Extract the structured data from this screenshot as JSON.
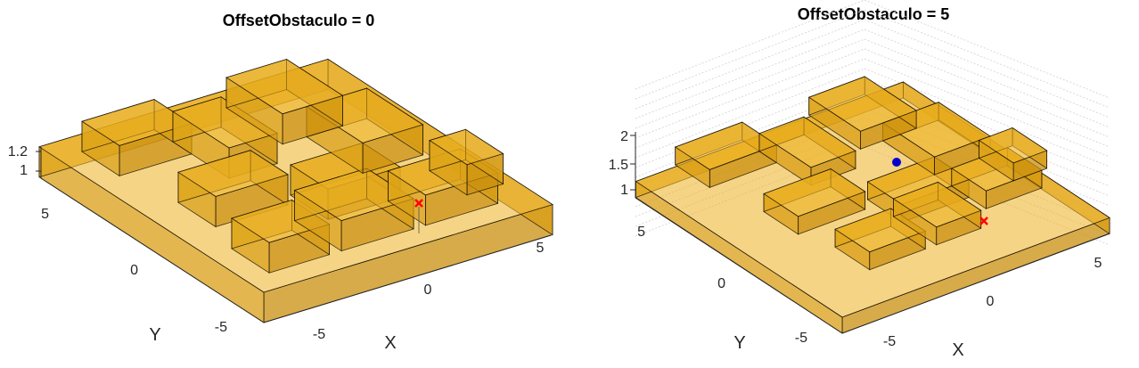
{
  "chart_data": [
    {
      "type": "3d-surface",
      "title": "OffsetObstaculo = 0",
      "xlabel": "X",
      "ylabel": "Y",
      "xticks": [
        "-5",
        "0",
        "5"
      ],
      "yticks": [
        "-5",
        "0",
        "5"
      ],
      "zticks": [
        "1",
        "1.2"
      ],
      "grid": false,
      "colors": {
        "obstacle": "#edb120",
        "goal": "#ff0000"
      },
      "goal_marker": "x"
    },
    {
      "type": "3d-surface",
      "title": "OffsetObstaculo = 5",
      "xlabel": "X",
      "ylabel": "Y",
      "xticks": [
        "-5",
        "0",
        "5"
      ],
      "yticks": [
        "-5",
        "0",
        "5"
      ],
      "zticks": [
        "1",
        "1.5",
        "2"
      ],
      "grid": true,
      "colors": {
        "obstacle": "#edb120",
        "goal": "#ff0000",
        "start": "#0000cc"
      },
      "goal_marker": "x",
      "start_marker": "o"
    }
  ]
}
